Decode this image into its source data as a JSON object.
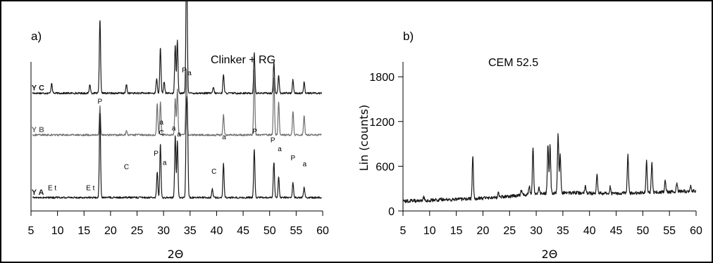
{
  "colors": {
    "series_dark": "#1a1a1a",
    "series_grey": "#6e6e6e",
    "axis": "#000000",
    "background": "#ffffff"
  },
  "chart_data": [
    {
      "type": "line",
      "panel_label": "a)",
      "title": "Clinker + RG",
      "xlabel": "2Θ",
      "ylabel": "",
      "xlim": [
        5,
        60
      ],
      "xticks": [
        5,
        10,
        15,
        20,
        25,
        30,
        35,
        40,
        45,
        50,
        55,
        60
      ],
      "ylim": [
        0,
        1
      ],
      "yticks": [],
      "grid": false,
      "legend": "none",
      "series": [
        {
          "name": "Y C",
          "color": "#1a1a1a",
          "baseline": 0.21,
          "peaks": [
            [
              8.9,
              0.07
            ],
            [
              16.1,
              0.06
            ],
            [
              18.0,
              0.5
            ],
            [
              23.0,
              0.06
            ],
            [
              28.7,
              0.1
            ],
            [
              29.4,
              0.31
            ],
            [
              30.1,
              0.08
            ],
            [
              32.2,
              0.33
            ],
            [
              32.6,
              0.36
            ],
            [
              34.3,
              0.6
            ],
            [
              34.4,
              0.4
            ],
            [
              39.4,
              0.04
            ],
            [
              41.3,
              0.13
            ],
            [
              47.1,
              0.27
            ],
            [
              50.8,
              0.21
            ],
            [
              51.7,
              0.12
            ],
            [
              54.4,
              0.09
            ],
            [
              56.5,
              0.08
            ]
          ]
        },
        {
          "name": "Y B",
          "color": "#6e6e6e",
          "baseline": 0.49,
          "peaks": [
            [
              18.0,
              0.2
            ],
            [
              23.0,
              0.03
            ],
            [
              28.8,
              0.21
            ],
            [
              29.4,
              0.22
            ],
            [
              32.2,
              0.25
            ],
            [
              32.6,
              0.31
            ],
            [
              34.3,
              0.45
            ],
            [
              41.3,
              0.14
            ],
            [
              47.1,
              0.44
            ],
            [
              50.8,
              0.39
            ],
            [
              51.7,
              0.23
            ],
            [
              54.4,
              0.16
            ],
            [
              56.5,
              0.13
            ]
          ]
        },
        {
          "name": "Y A",
          "color": "#1a1a1a",
          "baseline": 0.91,
          "peaks": [
            [
              18.0,
              0.57
            ],
            [
              28.8,
              0.17
            ],
            [
              29.4,
              0.36
            ],
            [
              32.2,
              0.42
            ],
            [
              32.6,
              0.38
            ],
            [
              34.3,
              0.52
            ],
            [
              34.5,
              0.48
            ],
            [
              39.2,
              0.06
            ],
            [
              41.3,
              0.23
            ],
            [
              47.1,
              0.33
            ],
            [
              50.8,
              0.24
            ],
            [
              51.7,
              0.14
            ],
            [
              54.4,
              0.1
            ],
            [
              56.5,
              0.07
            ]
          ]
        }
      ],
      "annotations": [
        {
          "text": "E t",
          "x": 9.0,
          "y": 0.14
        },
        {
          "text": "E t",
          "x": 16.2,
          "y": 0.14
        },
        {
          "text": "P",
          "x": 18.0,
          "y": 0.72
        },
        {
          "text": "C",
          "x": 23.0,
          "y": 0.28
        },
        {
          "text": "P",
          "x": 28.6,
          "y": 0.37
        },
        {
          "text": "a",
          "x": 29.6,
          "y": 0.58
        },
        {
          "text": "C",
          "x": 29.6,
          "y": 0.51
        },
        {
          "text": "a",
          "x": 30.2,
          "y": 0.31
        },
        {
          "text": "a",
          "x": 31.9,
          "y": 0.54
        },
        {
          "text": "a",
          "x": 32.9,
          "y": 0.5
        },
        {
          "text": "P",
          "x": 33.9,
          "y": 0.93
        },
        {
          "text": "a",
          "x": 34.9,
          "y": 0.91
        },
        {
          "text": "C",
          "x": 39.5,
          "y": 0.25
        },
        {
          "text": "a",
          "x": 41.4,
          "y": 0.48
        },
        {
          "text": "P",
          "x": 47.2,
          "y": 0.52
        },
        {
          "text": "P",
          "x": 50.6,
          "y": 0.46
        },
        {
          "text": "a",
          "x": 51.9,
          "y": 0.4
        },
        {
          "text": "P",
          "x": 54.4,
          "y": 0.34
        },
        {
          "text": "a",
          "x": 56.6,
          "y": 0.3
        }
      ]
    },
    {
      "type": "line",
      "panel_label": "b)",
      "title": "CEM 52.5",
      "xlabel": "2Θ",
      "ylabel": "Lin (counts)",
      "xlim": [
        5,
        60
      ],
      "xticks": [
        5,
        10,
        15,
        20,
        25,
        30,
        35,
        40,
        45,
        50,
        55,
        60
      ],
      "ylim": [
        0,
        2000
      ],
      "yticks": [
        0,
        600,
        1200,
        1800
      ],
      "grid": false,
      "legend": "none",
      "series": [
        {
          "name": "",
          "color": "#1a1a1a",
          "baseline_start": 130,
          "baseline_end": 270,
          "peaks": [
            [
              8.9,
              40
            ],
            [
              12.0,
              30
            ],
            [
              18.1,
              560
            ],
            [
              22.9,
              60
            ],
            [
              27.2,
              60
            ],
            [
              28.7,
              120
            ],
            [
              29.4,
              640
            ],
            [
              30.5,
              90
            ],
            [
              32.2,
              660
            ],
            [
              32.6,
              650
            ],
            [
              34.1,
              800
            ],
            [
              34.5,
              520
            ],
            [
              39.2,
              90
            ],
            [
              41.4,
              260
            ],
            [
              43.9,
              90
            ],
            [
              47.2,
              510
            ],
            [
              50.7,
              420
            ],
            [
              51.7,
              410
            ],
            [
              54.2,
              140
            ],
            [
              56.4,
              120
            ],
            [
              59.0,
              70
            ]
          ]
        }
      ]
    }
  ]
}
